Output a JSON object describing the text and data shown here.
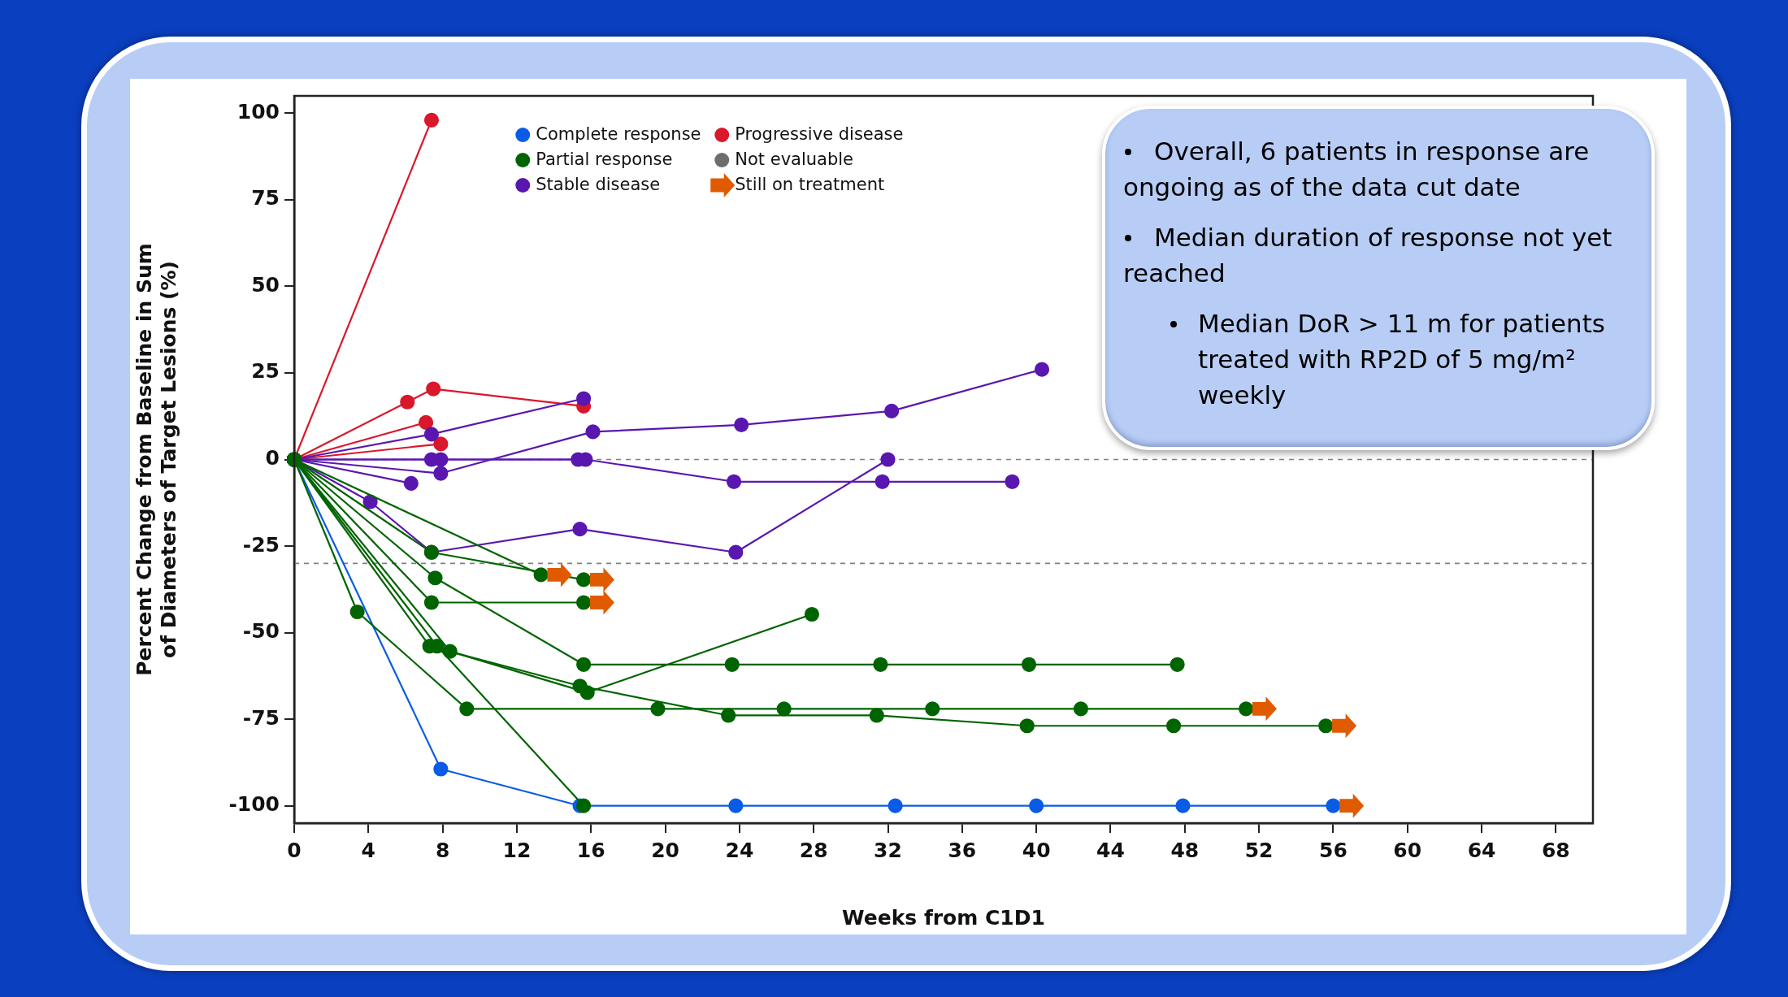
{
  "chart_data": {
    "type": "line",
    "xlabel": "Weeks from C1D1",
    "ylabel": "Percent Change from Baseline in Sum of Diameters of Target Lesions (%)",
    "xlim": [
      0,
      70
    ],
    "ylim": [
      -105,
      105
    ],
    "xticks": [
      0,
      4,
      8,
      12,
      16,
      20,
      24,
      28,
      32,
      36,
      40,
      44,
      48,
      52,
      56,
      60,
      64,
      68
    ],
    "yticks": [
      -100,
      -75,
      -50,
      -25,
      0,
      25,
      50,
      75,
      100
    ],
    "grid": false,
    "legend": "top left",
    "marker": "circle",
    "line_style": "solid",
    "ref_lines": [
      {
        "axis": "y",
        "value": 0,
        "color": "#808080",
        "line_style": "dashed"
      },
      {
        "axis": "y",
        "value": -30,
        "color": "#808080",
        "line_style": "dashed"
      }
    ],
    "annotations": [
      "Overall, 6 patients in response are ongoing as of the data cut date",
      "Median duration of response not yet reached",
      "Median DoR > 11 m for patients treated with RP2D of 5 mg/m² weekly"
    ],
    "series": [
      {
        "name": "Complete response",
        "color": "#0a5ce6",
        "x": [
          0,
          7.9,
          15.4,
          23.8,
          32.4,
          40,
          47.9,
          56
        ],
        "values": [
          0,
          -89.4,
          -100,
          -100,
          -100,
          -100,
          -100,
          -100
        ]
      },
      {
        "name": "Partial response",
        "color": "#006400",
        "x": [
          0,
          7.6,
          15.6,
          23.6,
          31.6,
          39.6,
          47.6
        ],
        "values": [
          0,
          -34.2,
          -59.2,
          -59.2,
          -59.2,
          -59.2,
          -59.2
        ]
      },
      {
        "name": "Stable disease",
        "color": "#5a17b0",
        "x": [
          0,
          7.9,
          16.1,
          24.1,
          32.2,
          40.3
        ],
        "values": [
          0,
          -4,
          8,
          10,
          14,
          26
        ]
      },
      {
        "name": "Progressive disease",
        "color": "#d9182c",
        "x": [
          0,
          7.4
        ],
        "values": [
          0,
          98
        ]
      },
      {
        "name": "Not evaluable",
        "color": "#6d6d6d"
      },
      {
        "color": "#d9182c",
        "x": [
          0,
          6.1,
          7.5,
          15.6
        ],
        "values": [
          0,
          16.6,
          20.4,
          15.4
        ]
      },
      {
        "color": "#d9182c",
        "x": [
          0,
          7.1
        ],
        "values": [
          0,
          10.7
        ]
      },
      {
        "color": "#d9182c",
        "x": [
          0,
          7.9
        ],
        "values": [
          0,
          4.5
        ]
      },
      {
        "color": "#5a17b0",
        "x": [
          0,
          7.4,
          15.6
        ],
        "values": [
          0,
          7.3,
          17.6
        ]
      },
      {
        "color": "#5a17b0",
        "x": [
          0,
          7.4,
          15.3
        ],
        "values": [
          0,
          0,
          0
        ]
      },
      {
        "color": "#5a17b0",
        "x": [
          0,
          7.9,
          15.7,
          23.7,
          31.7,
          38.7
        ],
        "values": [
          0,
          0,
          0,
          -6.4,
          -6.4,
          -6.4
        ]
      },
      {
        "color": "#5a17b0",
        "x": [
          0,
          6.3
        ],
        "values": [
          0,
          -6.9
        ]
      },
      {
        "color": "#5a17b0",
        "x": [
          0,
          4.1,
          7.4,
          15.4,
          23.8,
          32
        ],
        "values": [
          0,
          -12.2,
          -26.8,
          -20.1,
          -26.8,
          0
        ]
      },
      {
        "color": "#006400",
        "x": [
          0,
          7.4,
          15.6
        ],
        "values": [
          0,
          -26.8,
          -34.7
        ]
      },
      {
        "color": "#006400",
        "x": [
          0,
          13.3
        ],
        "values": [
          0,
          -33.3
        ]
      },
      {
        "color": "#006400",
        "x": [
          0,
          7.4,
          15.6
        ],
        "values": [
          0,
          -41.3,
          -41.3
        ]
      },
      {
        "color": "#006400",
        "x": [
          0,
          3.4,
          9.3,
          19.6,
          26.4,
          34.4,
          42.4,
          51.3
        ],
        "values": [
          0,
          -44,
          -72,
          -72,
          -72,
          -72,
          -72,
          -72
        ]
      },
      {
        "color": "#006400",
        "x": [
          0,
          7.3,
          15.4,
          23.4,
          31.4,
          39.5,
          47.4,
          55.6
        ],
        "values": [
          0,
          -53.9,
          -65.4,
          -73.9,
          -73.9,
          -76.9,
          -76.9,
          -76.9
        ]
      },
      {
        "color": "#006400",
        "x": [
          0,
          8.4,
          15.8,
          27.9
        ],
        "values": [
          0,
          -55.4,
          -67.3,
          -44.7
        ]
      },
      {
        "color": "#006400",
        "x": [
          0,
          7.7,
          15.6
        ],
        "values": [
          0,
          -53.9,
          -100
        ]
      },
      {
        "name": "Still on treatment",
        "type": "scatter",
        "color": "#e05a00",
        "x": [
          14.3,
          16.6,
          16.6,
          52.3,
          56.6,
          57
        ],
        "values": [
          -33.3,
          -34.7,
          -41.3,
          -72,
          -76.9,
          -100
        ]
      }
    ]
  }
}
